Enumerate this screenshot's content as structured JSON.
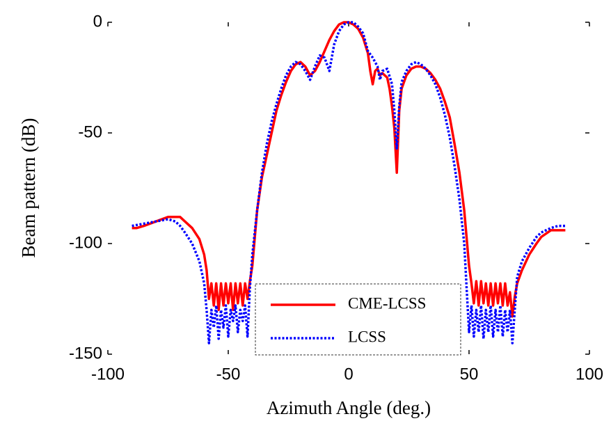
{
  "chart_data": {
    "type": "line",
    "x_label": "Azimuth Angle (deg.)",
    "y_label": "Beam pattern (dB)",
    "xlim": [
      -100,
      100
    ],
    "xticks": [
      -100,
      -50,
      0,
      50,
      100
    ],
    "ylim": [
      -150,
      0
    ],
    "yticks": [
      -150,
      -100,
      -50,
      0
    ],
    "legend": "lower center",
    "series": [
      {
        "name": "CME-LCSS",
        "color": "#ff0000",
        "style": "solid",
        "x": [
          -90,
          -88,
          -85,
          -80,
          -75,
          -70,
          -68,
          -65,
          -62,
          -60,
          -59,
          -58,
          -57,
          -56,
          -55,
          -54,
          -53,
          -52,
          -51,
          -50,
          -49,
          -48,
          -47,
          -46,
          -45,
          -44,
          -43,
          -42,
          -41,
          -40,
          -38,
          -36,
          -34,
          -32,
          -30,
          -28,
          -26,
          -24,
          -22,
          -20,
          -18,
          -16,
          -14,
          -12,
          -10,
          -8,
          -6,
          -4,
          -2,
          0,
          2,
          4,
          6,
          8,
          9,
          10,
          11,
          12,
          13,
          14,
          16,
          17,
          18,
          19,
          20,
          21,
          22,
          24,
          26,
          28,
          30,
          32,
          34,
          36,
          38,
          40,
          42,
          44,
          46,
          48,
          50,
          51,
          52,
          53,
          54,
          55,
          56,
          57,
          58,
          59,
          60,
          61,
          62,
          63,
          64,
          65,
          66,
          67,
          68,
          69,
          70,
          72,
          75,
          78,
          80,
          84,
          88,
          90
        ],
        "values": [
          -93,
          -93,
          -92,
          -90,
          -88,
          -88,
          -90,
          -93,
          -98,
          -105,
          -112,
          -125,
          -118,
          -128,
          -118,
          -130,
          -118,
          -128,
          -118,
          -127,
          -118,
          -130,
          -118,
          -127,
          -118,
          -128,
          -118,
          -125,
          -117,
          -110,
          -85,
          -70,
          -60,
          -50,
          -40,
          -33,
          -27,
          -22,
          -19,
          -18,
          -20,
          -24,
          -22,
          -18,
          -13,
          -8,
          -4,
          -1,
          0,
          0,
          -1,
          -3,
          -7,
          -14,
          -22,
          -28,
          -22,
          -21,
          -24,
          -23,
          -25,
          -30,
          -38,
          -48,
          -68,
          -40,
          -30,
          -24,
          -21,
          -20,
          -20,
          -21,
          -23,
          -26,
          -30,
          -36,
          -43,
          -55,
          -68,
          -85,
          -110,
          -118,
          -127,
          -117,
          -128,
          -117,
          -127,
          -118,
          -128,
          -118,
          -128,
          -118,
          -127,
          -118,
          -128,
          -118,
          -128,
          -122,
          -133,
          -124,
          -118,
          -112,
          -105,
          -100,
          -97,
          -94,
          -94,
          -94
        ]
      },
      {
        "name": "LCSS",
        "color": "#0000ff",
        "style": "dotted",
        "x": [
          -90,
          -85,
          -80,
          -75,
          -72,
          -70,
          -68,
          -65,
          -62,
          -60,
          -59,
          -58,
          -57,
          -56,
          -55,
          -54,
          -53,
          -52,
          -51,
          -50,
          -49,
          -48,
          -47,
          -46,
          -45,
          -44,
          -43,
          -42,
          -41,
          -40,
          -38,
          -36,
          -34,
          -32,
          -30,
          -28,
          -26,
          -24,
          -22,
          -20,
          -18,
          -16,
          -14,
          -12,
          -10,
          -8,
          -6,
          -4,
          -2,
          0,
          2,
          4,
          6,
          8,
          10,
          12,
          13,
          14,
          16,
          18,
          19,
          20,
          21,
          22,
          24,
          26,
          28,
          30,
          32,
          34,
          36,
          38,
          40,
          42,
          44,
          46,
          48,
          49,
          50,
          51,
          52,
          53,
          54,
          55,
          56,
          57,
          58,
          59,
          60,
          61,
          62,
          63,
          64,
          65,
          66,
          67,
          68,
          69,
          70,
          72,
          75,
          78,
          80,
          84,
          87,
          90
        ],
        "values": [
          -92,
          -91,
          -90,
          -89,
          -90,
          -92,
          -95,
          -100,
          -108,
          -118,
          -130,
          -145,
          -130,
          -138,
          -128,
          -143,
          -130,
          -138,
          -128,
          -142,
          -130,
          -135,
          -128,
          -140,
          -130,
          -135,
          -128,
          -142,
          -120,
          -105,
          -85,
          -68,
          -55,
          -45,
          -37,
          -30,
          -24,
          -20,
          -18,
          -19,
          -22,
          -26,
          -20,
          -15,
          -16,
          -22,
          -10,
          -4,
          -1,
          0,
          0,
          -2,
          -5,
          -13,
          -16,
          -20,
          -26,
          -22,
          -21,
          -28,
          -40,
          -57,
          -38,
          -27,
          -22,
          -19,
          -18,
          -19,
          -21,
          -24,
          -28,
          -34,
          -42,
          -52,
          -65,
          -80,
          -100,
          -120,
          -140,
          -128,
          -142,
          -130,
          -140,
          -128,
          -143,
          -130,
          -140,
          -128,
          -142,
          -130,
          -140,
          -128,
          -142,
          -130,
          -140,
          -130,
          -145,
          -130,
          -115,
          -108,
          -102,
          -97,
          -95,
          -93,
          -92,
          -92
        ]
      }
    ]
  }
}
